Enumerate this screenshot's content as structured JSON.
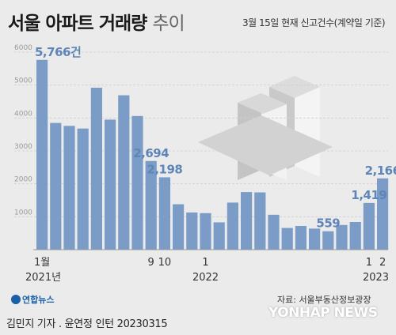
{
  "header": {
    "title_main": "서울 아파트 거래량",
    "title_light": "추이",
    "note": "3월 15일 현재 신고건수(계약일 기준)"
  },
  "chart_data": {
    "type": "bar",
    "ylim": [
      0,
      6000
    ],
    "yticks": [
      1000,
      2000,
      3000,
      4000,
      5000,
      6000
    ],
    "values": [
      5766,
      3850,
      3760,
      3680,
      4920,
      3950,
      4690,
      4060,
      2694,
      2198,
      1380,
      1130,
      1110,
      830,
      1430,
      1750,
      1740,
      1060,
      660,
      720,
      640,
      559,
      750,
      840,
      1419,
      2166
    ],
    "data_labels": [
      {
        "index": 0,
        "text": "5,766건"
      },
      {
        "index": 8,
        "text": "2,694"
      },
      {
        "index": 9,
        "text": "2,198"
      },
      {
        "index": 21,
        "text": "559"
      },
      {
        "index": 24,
        "text": "1,419"
      },
      {
        "index": 25,
        "text": "2,166"
      }
    ],
    "month_ticks": [
      {
        "index": 0,
        "text": "1월"
      },
      {
        "index": 8,
        "text": "9"
      },
      {
        "index": 9,
        "text": "10"
      },
      {
        "index": 12,
        "text": "1"
      },
      {
        "index": 24,
        "text": "1"
      },
      {
        "index": 25,
        "text": "2"
      }
    ],
    "year_ticks": [
      {
        "index": 0,
        "text": "2021년"
      },
      {
        "index": 12,
        "text": "2022"
      },
      {
        "index": 24.5,
        "text": "2023"
      }
    ],
    "colors": {
      "bar": "#7b9cc7",
      "label": "#5f85b8"
    }
  },
  "footer": {
    "logo": "연합뉴스",
    "source": "자료: 서울부동산정보광장",
    "credit": "김민지 기자 . 윤연정 인턴 20230315",
    "watermark": "YONHAP NEWS"
  }
}
